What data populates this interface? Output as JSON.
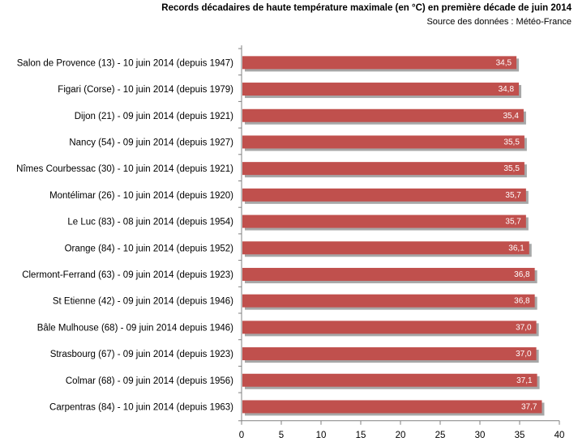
{
  "chart_data": {
    "type": "bar",
    "orientation": "horizontal",
    "title": "Records décadaires  de haute température maximale (en °C) en première décade de juin 2014",
    "subtitle": "Source des données : Météo-France",
    "categories": [
      "Salon de Provence (13) - 10 juin 2014 (depuis 1947)",
      "Figari (Corse) - 10 juin 2014 (depuis 1979)",
      "Dijon (21) - 09 juin 2014 (depuis 1921)",
      "Nancy (54) - 09 juin 2014 (depuis 1927)",
      "Nîmes Courbessac (30) - 10 juin 2014 (depuis 1921)",
      "Montélimar (26) - 10 juin 2014 (depuis 1920)",
      "Le Luc (83) - 08 juin 2014 (depuis 1954)",
      "Orange (84) - 10 juin 2014 (depuis 1952)",
      "Clermont-Ferrand (63) - 09 juin 2014 (depuis 1923)",
      "St Etienne (42) - 09 juin 2014 (depuis 1946)",
      "Bâle Mulhouse (68) - 09 juin 2014 depuis 1946)",
      "Strasbourg (67) - 09 juin 2014 (depuis 1923)",
      "Colmar (68) - 09 juin 2014 (depuis 1956)",
      "Carpentras (84) - 10 juin 2014 (depuis 1963)"
    ],
    "values": [
      34.5,
      34.8,
      35.4,
      35.5,
      35.5,
      35.7,
      35.7,
      36.1,
      36.8,
      36.8,
      37.0,
      37.0,
      37.1,
      37.7
    ],
    "data_labels": [
      "34,5",
      "34,8",
      "35,4",
      "35,5",
      "35,5",
      "35,7",
      "35,7",
      "36,1",
      "36,8",
      "36,8",
      "37,0",
      "37,0",
      "37,1",
      "37,7"
    ],
    "xlim": [
      0,
      40
    ],
    "x_ticks": [
      0,
      5,
      10,
      15,
      20,
      25,
      30,
      35,
      40
    ],
    "x_tick_labels": [
      "0",
      "5",
      "10",
      "15",
      "20",
      "25",
      "30",
      "35",
      "40"
    ],
    "xlabel": "",
    "ylabel": "",
    "grid": false,
    "legend": "none",
    "colors": {
      "bar": "#c0504d",
      "bar_shadow": "#8a8a8a",
      "axis": "#808080",
      "data_label": "#ffffff"
    }
  }
}
